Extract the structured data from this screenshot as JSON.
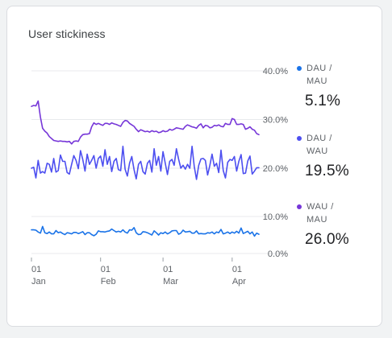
{
  "card": {
    "title": "User stickiness"
  },
  "legend": [
    {
      "label": "DAU / MAU",
      "value": "5.1%",
      "color": "#1a73e8"
    },
    {
      "label": "DAU / WAU",
      "value": "19.5%",
      "color": "#4d4ff0"
    },
    {
      "label": "WAU / MAU",
      "value": "26.0%",
      "color": "#7636d8"
    }
  ],
  "chart_data": {
    "type": "line",
    "y_axis_position": "right",
    "panels": [
      {
        "ylim": [
          20,
          40
        ],
        "ticks": [
          "40.0%",
          "30.0%",
          "20.0%"
        ]
      },
      {
        "ylim": [
          0,
          10
        ],
        "ticks": [
          "10.0%",
          "0.0%"
        ]
      }
    ],
    "x_ticks": [
      {
        "day": 0,
        "top": "01",
        "bottom": "Jan"
      },
      {
        "day": 31,
        "top": "01",
        "bottom": "Feb"
      },
      {
        "day": 59,
        "top": "01",
        "bottom": "Mar"
      },
      {
        "day": 90,
        "top": "01",
        "bottom": "Apr"
      }
    ],
    "series": [
      {
        "name": "WAU / MAU",
        "panel": 0,
        "color": "#7636d8",
        "x_start": "Jan 01",
        "values": [
          32.7,
          32.9,
          32.8,
          33.8,
          30.5,
          28.2,
          27.6,
          27.2,
          26.5,
          26.1,
          25.7,
          25.6,
          25.5,
          25.6,
          25.5,
          25.5,
          25.4,
          25.5,
          25.0,
          25.5,
          25.6,
          25.5,
          26.4,
          26.9,
          27.0,
          27.0,
          27.1,
          28.5,
          29.3,
          29.0,
          29.2,
          29.0,
          28.8,
          29.2,
          29.2,
          29.0,
          29.3,
          29.1,
          29.0,
          28.8,
          28.6,
          29.4,
          29.8,
          29.7,
          29.2,
          28.9,
          28.6,
          28.0,
          27.5,
          27.9,
          27.7,
          27.5,
          27.6,
          27.4,
          27.7,
          27.5,
          27.6,
          27.3,
          27.4,
          27.7,
          27.5,
          27.6,
          28.0,
          27.8,
          28.0,
          28.3,
          28.2,
          28.1,
          28.0,
          28.6,
          28.9,
          28.7,
          28.5,
          28.4,
          28.2,
          28.8,
          29.1,
          28.3,
          28.8,
          28.7,
          28.3,
          28.4,
          28.8,
          28.7,
          28.9,
          28.6,
          28.5,
          29.2,
          29.0,
          29.0,
          30.2,
          30.0,
          29.0,
          29.0,
          29.1,
          29.0,
          28.0,
          28.2,
          28.5,
          28.0,
          27.8,
          27.1,
          26.9
        ]
      },
      {
        "name": "DAU / WAU",
        "panel": 0,
        "color": "#4d4ff0",
        "x_start": "Jan 01",
        "values": [
          20.0,
          20.2,
          18.0,
          21.6,
          19.0,
          19.3,
          19.0,
          21.0,
          20.8,
          19.2,
          22.0,
          19.2,
          19.5,
          22.7,
          21.4,
          21.4,
          19.1,
          18.8,
          20.8,
          22.6,
          21.6,
          19.9,
          23.6,
          21.8,
          19.4,
          22.9,
          20.8,
          21.6,
          22.6,
          20.0,
          22.0,
          22.5,
          20.4,
          23.8,
          20.8,
          22.4,
          19.3,
          21.4,
          22.0,
          19.7,
          19.5,
          24.5,
          19.8,
          18.4,
          21.0,
          22.4,
          19.7,
          17.8,
          20.8,
          21.4,
          19.3,
          18.8,
          21.0,
          21.6,
          19.2,
          24.0,
          20.6,
          22.4,
          19.4,
          23.4,
          21.0,
          18.7,
          21.4,
          21.8,
          20.6,
          24.0,
          21.8,
          20.0,
          20.6,
          19.8,
          20.8,
          20.0,
          24.5,
          20.4,
          17.7,
          20.6,
          21.9,
          22.0,
          21.6,
          18.6,
          20.6,
          22.9,
          20.4,
          21.0,
          19.1,
          23.7,
          19.5,
          18.0,
          21.2,
          21.8,
          21.6,
          22.4,
          19.4,
          21.4,
          22.8,
          18.9,
          19.0,
          21.5,
          22.5,
          18.8,
          19.4,
          20.1,
          20.1
        ]
      },
      {
        "name": "DAU / MAU",
        "panel": 1,
        "color": "#1a73e8",
        "x_start": "Jan 01",
        "values": [
          6.4,
          6.4,
          6.3,
          5.8,
          5.5,
          7.3,
          5.6,
          5.4,
          5.8,
          5.3,
          5.3,
          6.2,
          5.6,
          5.8,
          5.4,
          5.1,
          5.6,
          5.5,
          5.3,
          5.7,
          5.7,
          5.4,
          5.6,
          5.9,
          5.1,
          5.6,
          5.6,
          5.1,
          4.8,
          5.2,
          6.1,
          5.9,
          5.9,
          5.8,
          6.0,
          6.1,
          6.6,
          6.2,
          5.8,
          6.0,
          5.8,
          6.4,
          5.8,
          5.5,
          6.4,
          6.3,
          7.0,
          5.6,
          5.1,
          5.2,
          5.9,
          5.8,
          5.6,
          5.3,
          5.0,
          6.1,
          5.6,
          5.0,
          5.6,
          5.4,
          5.8,
          5.3,
          5.6,
          6.1,
          6.2,
          6.2,
          5.2,
          5.5,
          6.3,
          5.8,
          5.9,
          6.0,
          5.5,
          5.5,
          6.1,
          5.3,
          5.4,
          5.3,
          5.3,
          5.6,
          5.5,
          5.8,
          5.3,
          5.8,
          5.6,
          6.5,
          5.3,
          5.5,
          5.8,
          5.4,
          5.8,
          5.5,
          6.0,
          5.5,
          6.9,
          5.4,
          5.7,
          6.0,
          5.3,
          5.8,
          4.7,
          5.5,
          5.2
        ]
      }
    ]
  }
}
